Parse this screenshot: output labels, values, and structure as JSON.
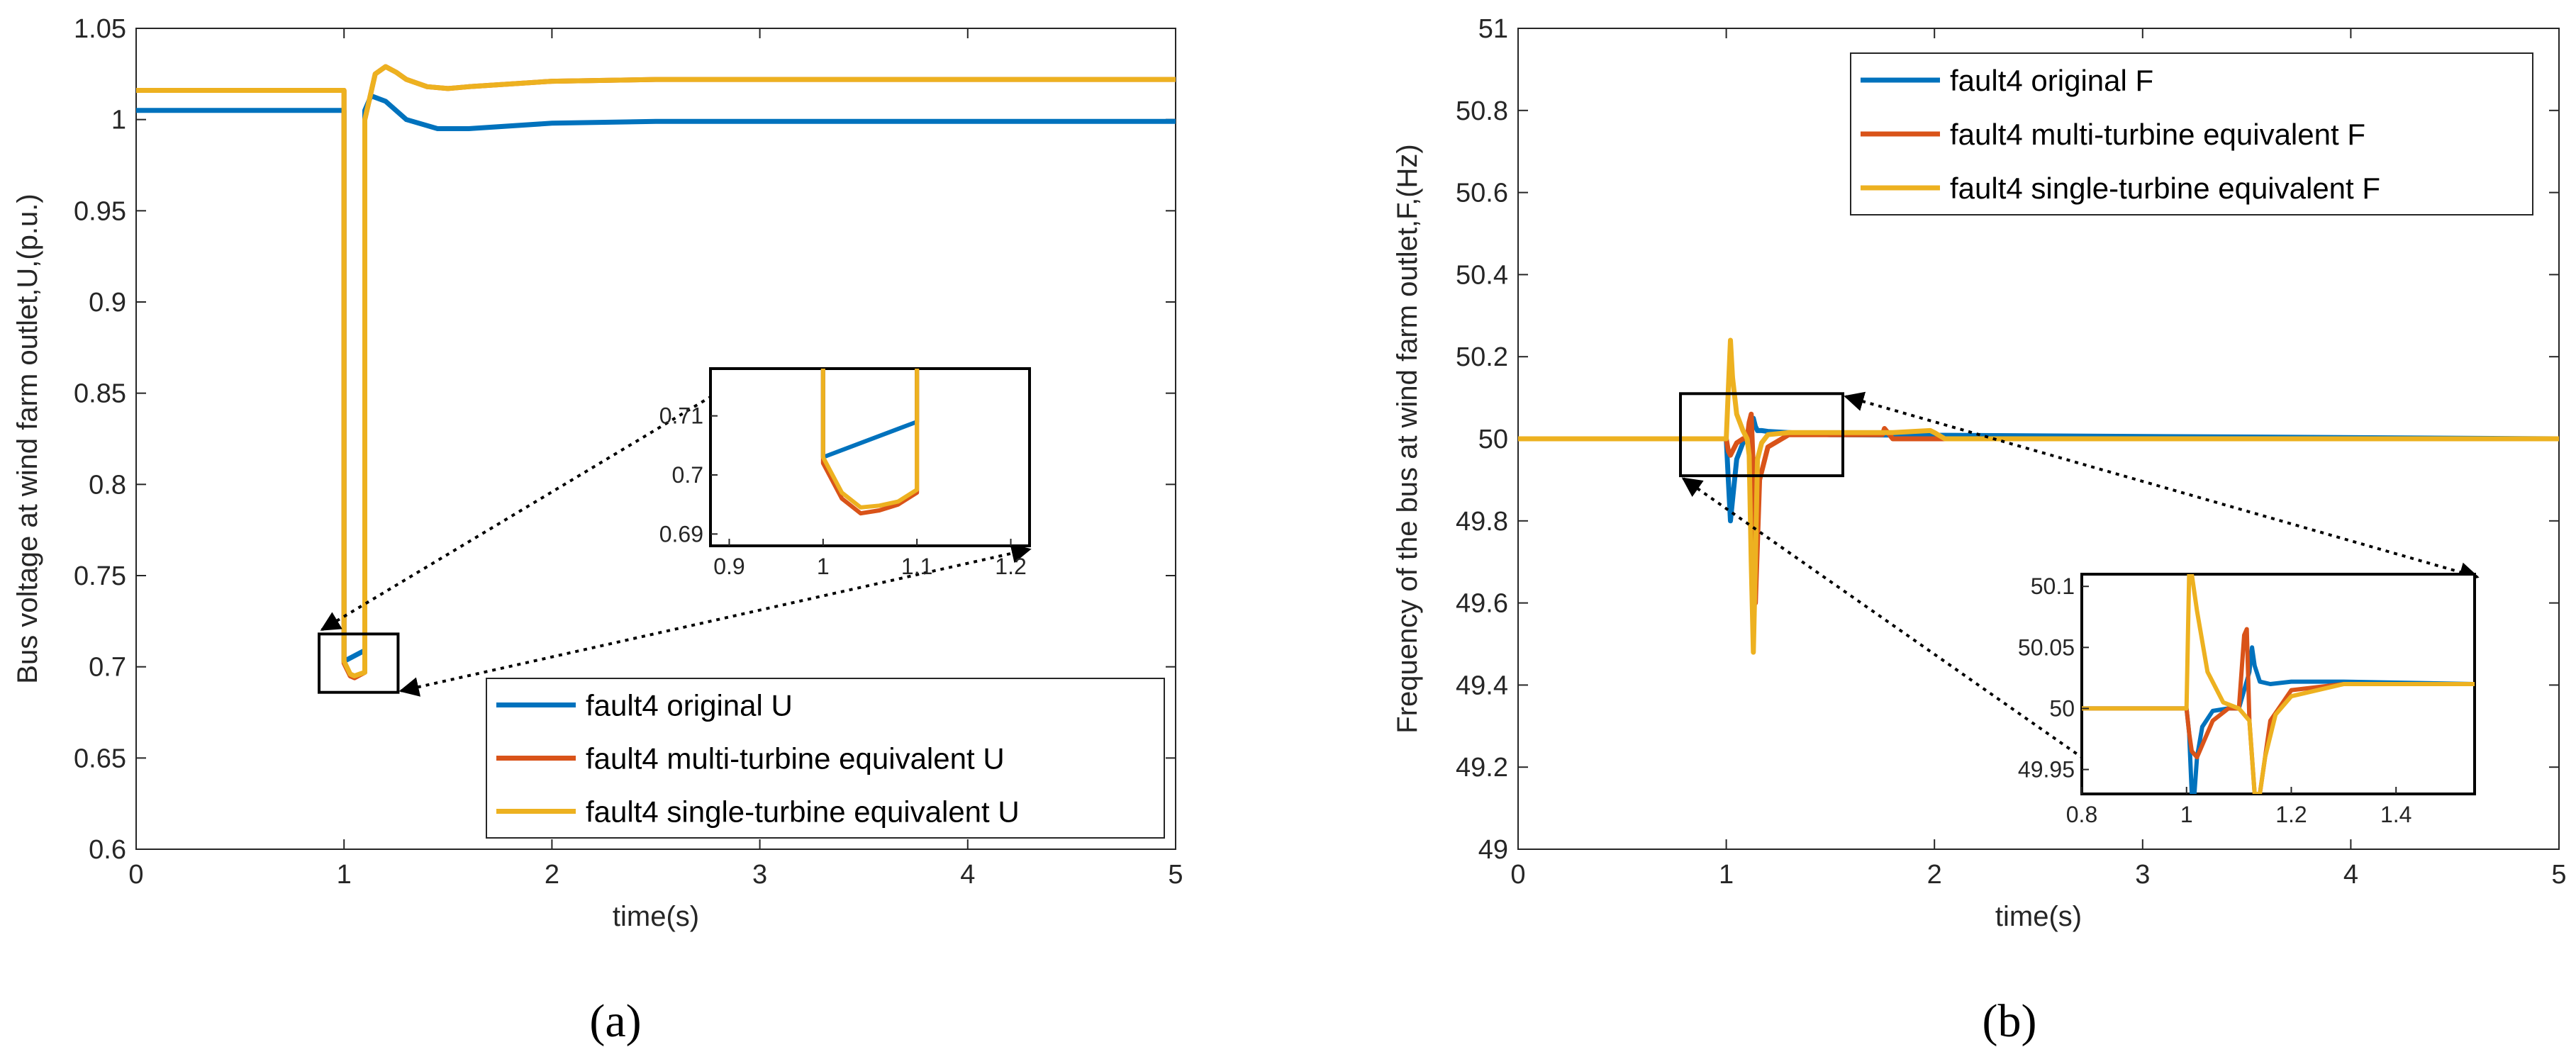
{
  "chart_data": [
    {
      "type": "line",
      "panel_label": "(a)",
      "xlabel": "time(s)",
      "ylabel": "Bus voltage at wind farm outlet,U,(p.u.)",
      "xlim": [
        0,
        5
      ],
      "ylim": [
        0.6,
        1.05
      ],
      "xticks": [
        "0",
        "1",
        "2",
        "3",
        "4",
        "5"
      ],
      "yticks": [
        "0.6",
        "0.65",
        "0.7",
        "0.75",
        "0.8",
        "0.85",
        "0.9",
        "0.95",
        "1",
        "1.05"
      ],
      "legend_location": "bottom-right",
      "series": [
        {
          "name": "fault4 original U",
          "color": "#0072BD",
          "x": [
            0,
            1.0,
            1.0,
            1.1,
            1.1,
            1.13,
            1.2,
            1.3,
            1.45,
            1.6,
            2.0,
            2.5,
            5.0
          ],
          "y": [
            1.005,
            1.005,
            0.703,
            0.709,
            1.005,
            1.013,
            1.01,
            1.0,
            0.995,
            0.995,
            0.998,
            0.999,
            0.999
          ]
        },
        {
          "name": "fault4 multi-turbine equivalent U",
          "color": "#D95319",
          "x": [
            0,
            1.0,
            1.0,
            1.03,
            1.05,
            1.1,
            1.1,
            1.15,
            1.2,
            1.25,
            1.3,
            1.4,
            1.5,
            1.6,
            2.0,
            2.5,
            5.0
          ],
          "y": [
            1.016,
            1.016,
            0.702,
            0.695,
            0.694,
            0.697,
            1.0,
            1.025,
            1.029,
            1.026,
            1.022,
            1.018,
            1.017,
            1.018,
            1.021,
            1.022,
            1.022
          ]
        },
        {
          "name": "fault4 single-turbine equivalent U",
          "color": "#EDB120",
          "x": [
            0,
            1.0,
            1.0,
            1.03,
            1.05,
            1.1,
            1.1,
            1.15,
            1.2,
            1.25,
            1.3,
            1.4,
            1.5,
            1.6,
            2.0,
            2.5,
            5.0
          ],
          "y": [
            1.016,
            1.016,
            0.703,
            0.696,
            0.695,
            0.697,
            1.0,
            1.025,
            1.029,
            1.026,
            1.022,
            1.018,
            1.017,
            1.018,
            1.021,
            1.022,
            1.022
          ]
        }
      ],
      "inset": {
        "xlim": [
          0.88,
          1.22
        ],
        "ylim": [
          0.688,
          0.718
        ],
        "xticks": [
          "0.9",
          "1",
          "1.1",
          "1.2"
        ],
        "yticks": [
          "0.69",
          "0.7",
          "0.71"
        ],
        "source_region": {
          "x": [
            0.88,
            1.26
          ],
          "y": [
            0.686,
            0.718
          ]
        },
        "series": [
          {
            "x": [
              1.0,
              1.0,
              1.1,
              1.1
            ],
            "y": [
              0.718,
              0.703,
              0.709,
              0.718
            ]
          },
          {
            "x": [
              1.0,
              1.0,
              1.02,
              1.04,
              1.06,
              1.08,
              1.1,
              1.1
            ],
            "y": [
              0.718,
              0.702,
              0.696,
              0.6935,
              0.694,
              0.695,
              0.697,
              0.718
            ]
          },
          {
            "x": [
              1.0,
              1.0,
              1.02,
              1.04,
              1.06,
              1.08,
              1.1,
              1.1
            ],
            "y": [
              0.718,
              0.703,
              0.697,
              0.6945,
              0.6948,
              0.6955,
              0.6975,
              0.718
            ]
          }
        ]
      }
    },
    {
      "type": "line",
      "panel_label": "(b)",
      "xlabel": "time(s)",
      "ylabel": "Frequency of the bus at wind farm outlet,F,(Hz)",
      "xlim": [
        0,
        5
      ],
      "ylim": [
        49,
        51
      ],
      "xticks": [
        "0",
        "1",
        "2",
        "3",
        "4",
        "5"
      ],
      "yticks": [
        "49",
        "49.2",
        "49.4",
        "49.6",
        "49.8",
        "50",
        "50.2",
        "50.4",
        "50.6",
        "50.8",
        "51"
      ],
      "legend_location": "top-right",
      "series": [
        {
          "name": "fault4 original F",
          "color": "#0072BD",
          "x": [
            0,
            1.0,
            1.01,
            1.02,
            1.03,
            1.05,
            1.08,
            1.1,
            1.12,
            1.13,
            1.14,
            1.15,
            1.17,
            1.2,
            1.3,
            1.5,
            5.0
          ],
          "y": [
            50.0,
            50.0,
            49.9,
            49.8,
            49.85,
            49.95,
            49.99,
            50.0,
            50.02,
            50.05,
            50.03,
            50.02,
            50.02,
            50.018,
            50.015,
            50.01,
            50.0
          ]
        },
        {
          "name": "fault4 multi-turbine equivalent F",
          "color": "#D95319",
          "x": [
            0,
            1.0,
            1.01,
            1.02,
            1.03,
            1.05,
            1.08,
            1.1,
            1.11,
            1.12,
            1.13,
            1.14,
            1.16,
            1.2,
            1.3,
            1.75,
            1.76,
            1.8,
            2.0,
            5.0
          ],
          "y": [
            50.0,
            50.0,
            49.97,
            49.96,
            49.97,
            49.99,
            50.0,
            50.0,
            50.04,
            50.06,
            49.92,
            49.6,
            49.9,
            49.98,
            50.01,
            50.01,
            50.025,
            50.0,
            50.0,
            50.0
          ]
        },
        {
          "name": "fault4 single-turbine equivalent F",
          "color": "#EDB120",
          "x": [
            0,
            1.0,
            1.01,
            1.02,
            1.03,
            1.05,
            1.08,
            1.1,
            1.11,
            1.12,
            1.13,
            1.14,
            1.15,
            1.17,
            1.2,
            1.3,
            1.5,
            1.8,
            1.98,
            2.0,
            2.05,
            5.0
          ],
          "y": [
            50.0,
            50.0,
            50.12,
            50.24,
            50.15,
            50.06,
            50.02,
            50.0,
            49.96,
            49.7,
            49.48,
            49.7,
            49.95,
            49.99,
            50.01,
            50.015,
            50.015,
            50.015,
            50.02,
            50.015,
            50.0,
            50.0
          ]
        }
      ],
      "inset": {
        "xlim": [
          0.8,
          1.55
        ],
        "ylim": [
          49.93,
          50.11
        ],
        "xticks": [
          "0.8",
          "1",
          "1.2",
          "1.4"
        ],
        "yticks": [
          "49.95",
          "50",
          "50.05",
          "50.1"
        ],
        "source_region": {
          "x": [
            0.78,
            1.56
          ],
          "y": [
            49.91,
            50.11
          ]
        },
        "series": [
          {
            "x": [
              0.8,
              1.0,
              1.005,
              1.01,
              1.015,
              1.02,
              1.03,
              1.05,
              1.08,
              1.1,
              1.12,
              1.125,
              1.13,
              1.14,
              1.16,
              1.2,
              1.3,
              1.55
            ],
            "y": [
              50.0,
              50.0,
              49.98,
              49.93,
              49.93,
              49.96,
              49.985,
              49.998,
              50.0,
              50.0,
              50.03,
              50.05,
              50.035,
              50.022,
              50.02,
              50.022,
              50.022,
              50.02
            ]
          },
          {
            "x": [
              0.8,
              1.0,
              1.005,
              1.01,
              1.02,
              1.03,
              1.05,
              1.08,
              1.1,
              1.11,
              1.115,
              1.12,
              1.13,
              1.14,
              1.16,
              1.2,
              1.3,
              1.55
            ],
            "y": [
              50.0,
              50.0,
              49.98,
              49.965,
              49.96,
              49.97,
              49.99,
              50.0,
              50.0,
              50.06,
              50.065,
              49.99,
              49.93,
              49.93,
              49.99,
              50.015,
              50.02,
              50.02
            ]
          },
          {
            "x": [
              0.8,
              1.0,
              1.005,
              1.01,
              1.02,
              1.04,
              1.07,
              1.1,
              1.12,
              1.13,
              1.14,
              1.15,
              1.17,
              1.2,
              1.3,
              1.55
            ],
            "y": [
              50.0,
              50.0,
              50.11,
              50.11,
              50.08,
              50.03,
              50.005,
              50.0,
              49.99,
              49.93,
              49.93,
              49.96,
              49.995,
              50.01,
              50.02,
              50.02
            ]
          }
        ]
      }
    }
  ]
}
